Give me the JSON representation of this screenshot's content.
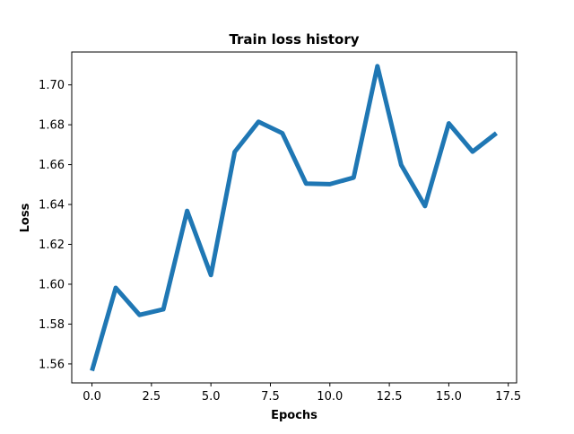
{
  "chart_data": {
    "type": "line",
    "title": "Train loss history",
    "xlabel": "Epochs",
    "ylabel": "Loss",
    "xlim": [
      -0.85,
      17.85
    ],
    "ylim": [
      1.5505,
      1.7165
    ],
    "xticks": [
      0.0,
      2.5,
      5.0,
      7.5,
      10.0,
      12.5,
      15.0,
      17.5
    ],
    "xtick_labels": [
      "0.0",
      "2.5",
      "5.0",
      "7.5",
      "10.0",
      "12.5",
      "15.0",
      "17.5"
    ],
    "yticks": [
      1.56,
      1.58,
      1.6,
      1.62,
      1.64,
      1.66,
      1.68,
      1.7
    ],
    "ytick_labels": [
      "1.56",
      "1.58",
      "1.60",
      "1.62",
      "1.64",
      "1.66",
      "1.68",
      "1.70"
    ],
    "grid": false,
    "line_color": "#1f77b4",
    "series": [
      {
        "x": [
          0,
          1,
          2,
          3,
          4,
          5,
          6,
          7,
          8,
          9,
          10,
          11,
          12,
          13,
          14,
          15,
          16,
          17
        ],
        "values": [
          1.5566,
          1.5982,
          1.5846,
          1.5874,
          1.6368,
          1.6046,
          1.6664,
          1.6815,
          1.6758,
          1.6505,
          1.6502,
          1.6535,
          1.7094,
          1.6598,
          1.6392,
          1.6807,
          1.6665,
          1.6758
        ]
      }
    ]
  }
}
